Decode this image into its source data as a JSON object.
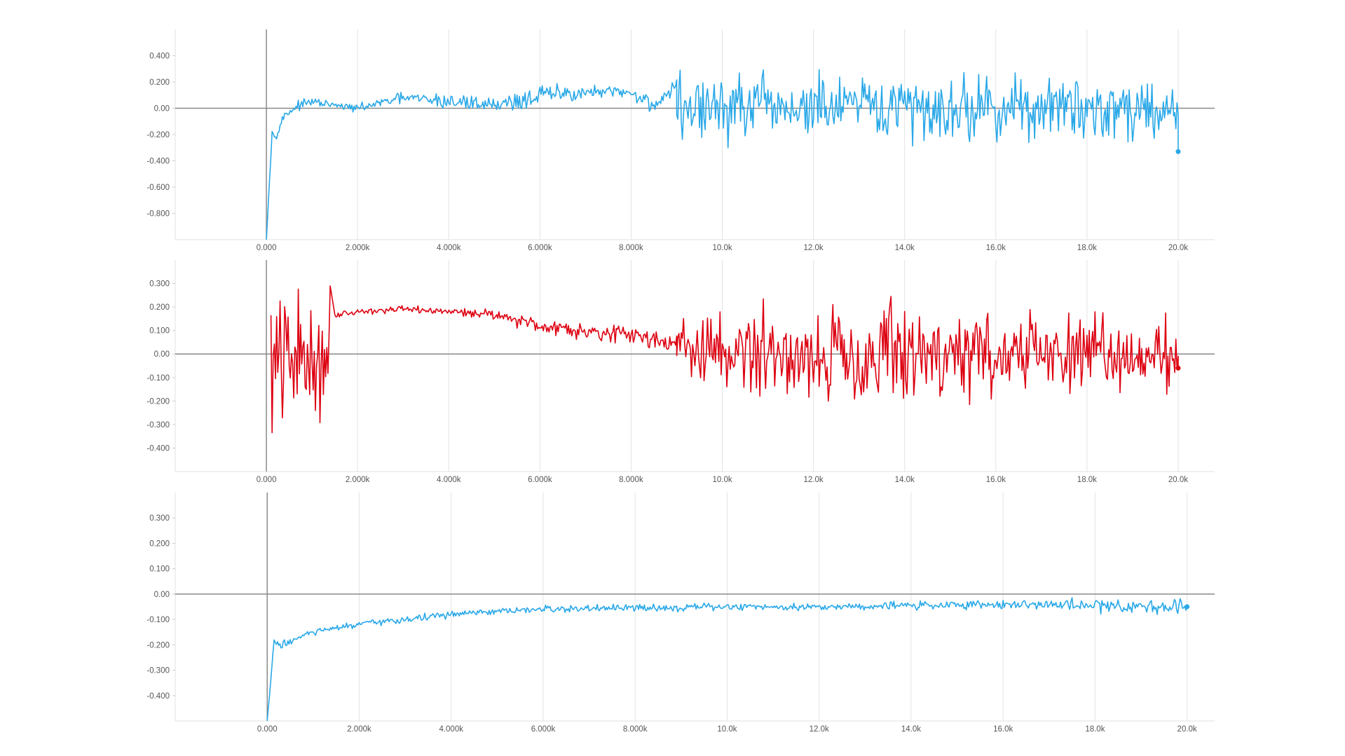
{
  "chart_data": [
    {
      "type": "line",
      "series_color": "#29a8e8",
      "xlim": [
        -2000,
        20800
      ],
      "ylim": [
        -1.0,
        0.6
      ],
      "x_ticks": [
        0,
        2000,
        4000,
        6000,
        8000,
        10000,
        12000,
        14000,
        16000,
        18000,
        20000
      ],
      "x_tick_labels": [
        "0.000",
        "2.000k",
        "4.000k",
        "6.000k",
        "8.000k",
        "10.0k",
        "12.0k",
        "14.0k",
        "16.0k",
        "18.0k",
        "20.0k"
      ],
      "y_ticks": [
        0.4,
        0.2,
        0.0,
        -0.2,
        -0.4,
        -0.6,
        -0.8
      ],
      "y_tick_labels": [
        "0.400",
        "0.200",
        "0.00",
        "-0.200",
        "-0.400",
        "-0.600",
        "-0.800"
      ],
      "grid": true,
      "end_value": -0.33,
      "segments": [
        {
          "x": [
            0,
            120,
            250,
            400,
            700,
            1000,
            1500,
            2000,
            3000,
            4000,
            5000,
            5600,
            6000,
            7000,
            8000,
            8500,
            9000
          ],
          "mean": [
            -1.0,
            -0.2,
            -0.18,
            -0.05,
            0.02,
            0.05,
            0.02,
            0.0,
            0.08,
            0.05,
            0.03,
            0.06,
            0.1,
            0.12,
            0.12,
            0.02,
            0.18
          ],
          "amp": [
            0.0,
            0.06,
            0.05,
            0.05,
            0.05,
            0.04,
            0.04,
            0.04,
            0.06,
            0.1,
            0.07,
            0.12,
            0.12,
            0.08,
            0.06,
            0.1,
            0.1
          ]
        },
        {
          "x": [
            9000,
            20000
          ],
          "mean": [
            0.0,
            0.0
          ],
          "amp": [
            0.38,
            0.33
          ]
        }
      ]
    },
    {
      "type": "line",
      "series_color": "#dd0010",
      "xlim": [
        -2000,
        20800
      ],
      "ylim": [
        -0.5,
        0.4
      ],
      "x_ticks": [
        0,
        2000,
        4000,
        6000,
        8000,
        10000,
        12000,
        14000,
        16000,
        18000,
        20000
      ],
      "x_tick_labels": [
        "0.000",
        "2.000k",
        "4.000k",
        "6.000k",
        "8.000k",
        "10.0k",
        "12.0k",
        "14.0k",
        "16.0k",
        "18.0k",
        "20.0k"
      ],
      "y_ticks": [
        0.3,
        0.2,
        0.1,
        0.0,
        -0.1,
        -0.2,
        -0.3,
        -0.4
      ],
      "y_tick_labels": [
        "0.300",
        "0.200",
        "0.100",
        "0.00",
        "-0.100",
        "-0.200",
        "-0.300",
        "-0.400"
      ],
      "grid": true,
      "end_value": -0.06,
      "segments": [
        {
          "x": [
            100,
            1400
          ],
          "mean": [
            -0.05,
            0.0
          ],
          "amp": [
            0.45,
            0.4
          ]
        },
        {
          "x": [
            1500,
            2000,
            3000,
            4000,
            5000,
            6000,
            7000,
            8000,
            9000
          ],
          "mean": [
            0.17,
            0.18,
            0.19,
            0.18,
            0.17,
            0.12,
            0.1,
            0.08,
            0.05
          ],
          "amp": [
            0.02,
            0.02,
            0.02,
            0.02,
            0.03,
            0.05,
            0.05,
            0.05,
            0.07
          ]
        },
        {
          "x": [
            9000,
            10500,
            12000,
            14000,
            16000,
            18000,
            20000
          ],
          "mean": [
            0.02,
            0.0,
            0.0,
            0.0,
            0.0,
            0.0,
            0.0
          ],
          "amp": [
            0.18,
            0.28,
            0.3,
            0.33,
            0.25,
            0.22,
            0.22
          ]
        }
      ]
    },
    {
      "type": "line",
      "series_color": "#29a8e8",
      "xlim": [
        -2000,
        20600
      ],
      "ylim": [
        -0.5,
        0.4
      ],
      "x_ticks": [
        0,
        2000,
        4000,
        6000,
        8000,
        10000,
        12000,
        14000,
        16000,
        18000,
        20000
      ],
      "x_tick_labels": [
        "0.000",
        "2.000k",
        "4.000k",
        "6.000k",
        "8.000k",
        "10.0k",
        "12.0k",
        "14.0k",
        "16.0k",
        "18.0k",
        "20.0k"
      ],
      "y_ticks": [
        0.3,
        0.2,
        0.1,
        0.0,
        -0.1,
        -0.2,
        -0.3,
        -0.4
      ],
      "y_tick_labels": [
        "0.300",
        "0.200",
        "0.100",
        "0.00",
        "-0.100",
        "-0.200",
        "-0.300",
        "-0.400"
      ],
      "grid": true,
      "end_value": -0.05,
      "segments": [
        {
          "x": [
            0,
            150,
            300,
            1000,
            2000,
            3000,
            4000,
            6000,
            8000,
            10000,
            12000,
            14000,
            16000,
            18000,
            20000
          ],
          "mean": [
            -0.5,
            -0.19,
            -0.2,
            -0.15,
            -0.12,
            -0.1,
            -0.08,
            -0.06,
            -0.055,
            -0.05,
            -0.05,
            -0.045,
            -0.04,
            -0.045,
            -0.05
          ],
          "amp": [
            0.0,
            0.02,
            0.03,
            0.02,
            0.02,
            0.02,
            0.02,
            0.02,
            0.02,
            0.02,
            0.02,
            0.025,
            0.025,
            0.04,
            0.045
          ]
        }
      ]
    }
  ]
}
